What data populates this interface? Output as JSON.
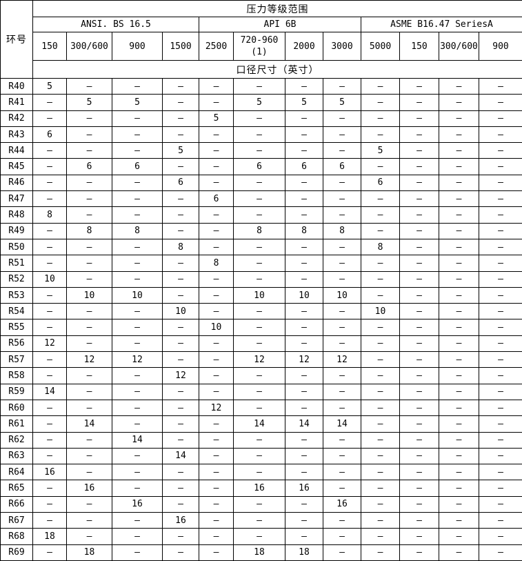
{
  "table": {
    "corner_header": "环号",
    "title": "压力等级范围",
    "groups": [
      {
        "label": "ANSI. BS 16.5",
        "classes": [
          "150",
          "300/600",
          "900",
          "1500"
        ]
      },
      {
        "label": "API 6B",
        "classes": [
          "2500",
          "720-960\n(1)",
          "2000",
          "3000"
        ]
      },
      {
        "label": "ASME B16.47 SeriesA",
        "classes": [
          "5000",
          "150",
          "300/600",
          "900"
        ]
      }
    ],
    "subtitle": "口径尺寸（英寸）",
    "rows": [
      {
        "ring": "R40",
        "values": [
          "5",
          "–",
          "–",
          "–",
          "–",
          "–",
          "–",
          "–",
          "–",
          "–",
          "–",
          "–"
        ]
      },
      {
        "ring": "R41",
        "values": [
          "–",
          "5",
          "5",
          "–",
          "–",
          "5",
          "5",
          "5",
          "–",
          "–",
          "–",
          "–"
        ]
      },
      {
        "ring": "R42",
        "values": [
          "–",
          "–",
          "–",
          "–",
          "5",
          "–",
          "–",
          "–",
          "–",
          "–",
          "–",
          "–"
        ]
      },
      {
        "ring": "R43",
        "values": [
          "6",
          "–",
          "–",
          "–",
          "–",
          "–",
          "–",
          "–",
          "–",
          "–",
          "–",
          "–"
        ]
      },
      {
        "ring": "R44",
        "values": [
          "–",
          "–",
          "–",
          "5",
          "–",
          "–",
          "–",
          "–",
          "5",
          "–",
          "–",
          "–"
        ]
      },
      {
        "ring": "R45",
        "values": [
          "–",
          "6",
          "6",
          "–",
          "–",
          "6",
          "6",
          "6",
          "–",
          "–",
          "–",
          "–"
        ]
      },
      {
        "ring": "R46",
        "values": [
          "–",
          "–",
          "–",
          "6",
          "–",
          "–",
          "–",
          "–",
          "6",
          "–",
          "–",
          "–"
        ]
      },
      {
        "ring": "R47",
        "values": [
          "–",
          "–",
          "–",
          "–",
          "6",
          "–",
          "–",
          "–",
          "–",
          "–",
          "–",
          "–"
        ]
      },
      {
        "ring": "R48",
        "values": [
          "8",
          "–",
          "–",
          "–",
          "–",
          "–",
          "–",
          "–",
          "–",
          "–",
          "–",
          "–"
        ]
      },
      {
        "ring": "R49",
        "values": [
          "–",
          "8",
          "8",
          "–",
          "–",
          "8",
          "8",
          "8",
          "–",
          "–",
          "–",
          "–"
        ]
      },
      {
        "ring": "R50",
        "values": [
          "–",
          "–",
          "–",
          "8",
          "–",
          "–",
          "–",
          "–",
          "8",
          "–",
          "–",
          "–"
        ]
      },
      {
        "ring": "R51",
        "values": [
          "–",
          "–",
          "–",
          "–",
          "8",
          "–",
          "–",
          "–",
          "–",
          "–",
          "–",
          "–"
        ]
      },
      {
        "ring": "R52",
        "values": [
          "10",
          "–",
          "–",
          "–",
          "–",
          "–",
          "–",
          "–",
          "–",
          "–",
          "–",
          "–"
        ]
      },
      {
        "ring": "R53",
        "values": [
          "–",
          "10",
          "10",
          "–",
          "–",
          "10",
          "10",
          "10",
          "–",
          "–",
          "–",
          "–"
        ]
      },
      {
        "ring": "R54",
        "values": [
          "–",
          "–",
          "–",
          "10",
          "–",
          "–",
          "–",
          "–",
          "10",
          "–",
          "–",
          "–"
        ]
      },
      {
        "ring": "R55",
        "values": [
          "–",
          "–",
          "–",
          "–",
          "10",
          "–",
          "–",
          "–",
          "–",
          "–",
          "–",
          "–"
        ]
      },
      {
        "ring": "R56",
        "values": [
          "12",
          "–",
          "–",
          "–",
          "–",
          "–",
          "–",
          "–",
          "–",
          "–",
          "–",
          "–"
        ]
      },
      {
        "ring": "R57",
        "values": [
          "–",
          "12",
          "12",
          "–",
          "–",
          "12",
          "12",
          "12",
          "–",
          "–",
          "–",
          "–"
        ]
      },
      {
        "ring": "R58",
        "values": [
          "–",
          "–",
          "–",
          "12",
          "–",
          "–",
          "–",
          "–",
          "–",
          "–",
          "–",
          "–"
        ]
      },
      {
        "ring": "R59",
        "values": [
          "14",
          "–",
          "–",
          "–",
          "–",
          "–",
          "–",
          "–",
          "–",
          "–",
          "–",
          "–"
        ]
      },
      {
        "ring": "R60",
        "values": [
          "–",
          "–",
          "–",
          "–",
          "12",
          "–",
          "–",
          "–",
          "–",
          "–",
          "–",
          "–"
        ]
      },
      {
        "ring": "R61",
        "values": [
          "–",
          "14",
          "–",
          "–",
          "–",
          "14",
          "14",
          "14",
          "–",
          "–",
          "–",
          "–"
        ]
      },
      {
        "ring": "R62",
        "values": [
          "–",
          "–",
          "14",
          "–",
          "–",
          "–",
          "–",
          "–",
          "–",
          "–",
          "–",
          "–"
        ]
      },
      {
        "ring": "R63",
        "values": [
          "–",
          "–",
          "–",
          "14",
          "–",
          "–",
          "–",
          "–",
          "–",
          "–",
          "–",
          "–"
        ]
      },
      {
        "ring": "R64",
        "values": [
          "16",
          "–",
          "–",
          "–",
          "–",
          "–",
          "–",
          "–",
          "–",
          "–",
          "–",
          "–"
        ]
      },
      {
        "ring": "R65",
        "values": [
          "–",
          "16",
          "–",
          "–",
          "–",
          "16",
          "16",
          "–",
          "–",
          "–",
          "–",
          "–"
        ]
      },
      {
        "ring": "R66",
        "values": [
          "–",
          "–",
          "16",
          "–",
          "–",
          "–",
          "–",
          "16",
          "–",
          "–",
          "–",
          "–"
        ]
      },
      {
        "ring": "R67",
        "values": [
          "–",
          "–",
          "–",
          "16",
          "–",
          "–",
          "–",
          "–",
          "–",
          "–",
          "–",
          "–"
        ]
      },
      {
        "ring": "R68",
        "values": [
          "18",
          "–",
          "–",
          "–",
          "–",
          "–",
          "–",
          "–",
          "–",
          "–",
          "–",
          "–"
        ]
      },
      {
        "ring": "R69",
        "values": [
          "–",
          "18",
          "–",
          "–",
          "–",
          "18",
          "18",
          "–",
          "–",
          "–",
          "–",
          "–"
        ]
      }
    ]
  }
}
